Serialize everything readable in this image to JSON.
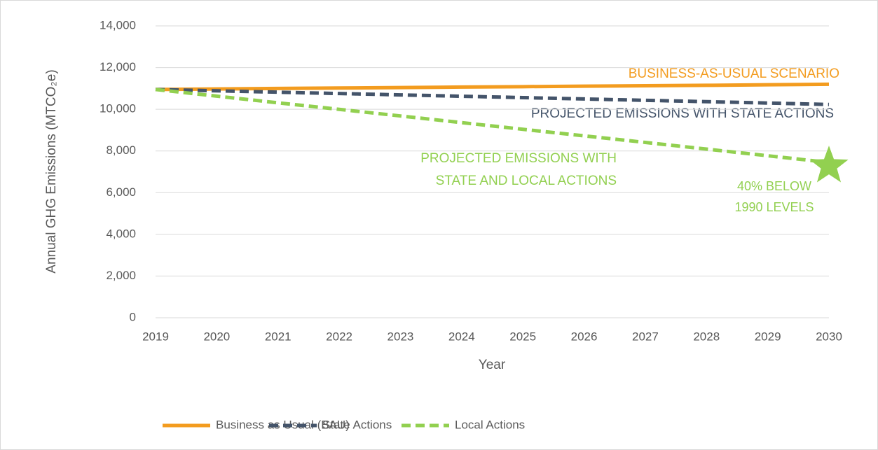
{
  "chart_data": {
    "type": "line",
    "y_label": "Annual GHG Emissions (MTCO₂e)",
    "x_label": "Year",
    "categories": [
      "2019",
      "2020",
      "2021",
      "2022",
      "2023",
      "2024",
      "2025",
      "2026",
      "2027",
      "2028",
      "2029",
      "2030"
    ],
    "series": [
      {
        "name": "Business as Usual (BAU)",
        "color": "#F39C1F",
        "dashed": false,
        "values": [
          10950,
          10975,
          11000,
          11020,
          11040,
          11065,
          11085,
          11110,
          11130,
          11150,
          11175,
          11200
        ]
      },
      {
        "name": "State Actions",
        "color": "#44546A",
        "dashed": true,
        "values": [
          10950,
          10885,
          10820,
          10755,
          10690,
          10625,
          10560,
          10495,
          10430,
          10365,
          10300,
          10230
        ]
      },
      {
        "name": "Local Actions",
        "color": "#92D050",
        "dashed": true,
        "values": [
          10950,
          10630,
          10310,
          9995,
          9680,
          9360,
          9040,
          8725,
          8410,
          8090,
          7770,
          7450
        ]
      }
    ],
    "annotations": {
      "bau": "BUSINESS-AS-USUAL SCENARIO",
      "state": "PROJECTED EMISSIONS WITH STATE ACTIONS",
      "local": [
        "PROJECTED EMISSIONS WITH",
        "STATE AND LOCAL ACTIONS"
      ],
      "target": [
        "40% BELOW",
        "1990 LEVELS"
      ]
    },
    "ylim": [
      0,
      14000
    ],
    "yticks": [
      {
        "value": 0,
        "label": "0"
      },
      {
        "value": 2000,
        "label": "2,000"
      },
      {
        "value": 4000,
        "label": "4,000"
      },
      {
        "value": 6000,
        "label": "6,000"
      },
      {
        "value": 8000,
        "label": "8,000"
      },
      {
        "value": 10000,
        "label": "10,000"
      },
      {
        "value": 12000,
        "label": "12,000"
      },
      {
        "value": 14000,
        "label": "14,000"
      }
    ],
    "grid": true,
    "legend": "bottom"
  }
}
